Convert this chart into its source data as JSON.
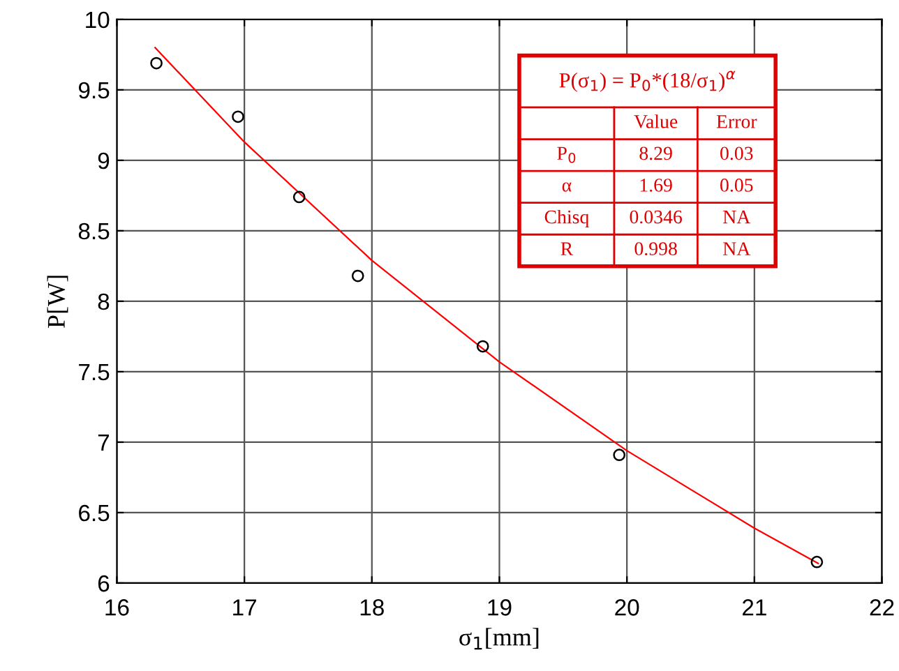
{
  "chart_data": {
    "type": "scatter",
    "xlabel": "σ$_{1}$[mm]",
    "ylabel": "P[W]",
    "xlim": [
      16,
      22
    ],
    "ylim": [
      6,
      10
    ],
    "xticks": [
      16,
      17,
      18,
      19,
      20,
      21,
      22
    ],
    "yticks": [
      6,
      6.5,
      7,
      7.5,
      8,
      8.5,
      9,
      9.5,
      10
    ],
    "grid": true,
    "series": [
      {
        "marker": "circle",
        "color": "#000000",
        "x": [
          16.31,
          16.95,
          17.43,
          17.89,
          18.87,
          19.94,
          21.49
        ],
        "values": [
          9.69,
          9.31,
          8.74,
          8.18,
          7.68,
          6.91,
          6.15
        ]
      },
      {
        "type": "line",
        "marker": "none",
        "color": "#ff0000",
        "x": [
          16.3,
          17,
          18,
          19,
          20,
          21,
          21.5
        ],
        "values": [
          9.8,
          9.13,
          8.29,
          7.57,
          6.94,
          6.39,
          6.14
        ]
      }
    ],
    "annotations": [
      "P(σ$_{1}$) = P$_{0}$*(18/σ$_{1}$)$^{α}$",
      "Value",
      "Error",
      "P$_{0}$",
      "8.29",
      "0.03",
      "α",
      "1.69",
      "0.05",
      "Chisq",
      "0.0346",
      "NA",
      "R",
      "0.998",
      "NA"
    ]
  }
}
